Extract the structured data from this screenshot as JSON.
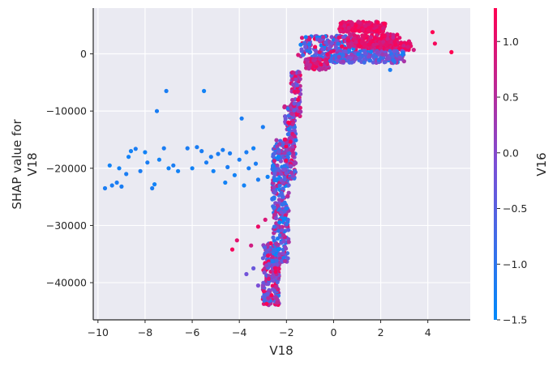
{
  "chart_data": {
    "type": "scatter",
    "title": "",
    "xlabel": "V18",
    "ylabel_lines": [
      "SHAP value for",
      "V18"
    ],
    "colorbar_label": "V16",
    "xlim": [
      -10.2,
      5.8
    ],
    "ylim": [
      -46500,
      8000
    ],
    "xticks": [
      -10,
      -8,
      -6,
      -4,
      -2,
      0,
      2,
      4
    ],
    "yticks": [
      0,
      -10000,
      -20000,
      -30000,
      -40000
    ],
    "color_range": [
      -1.5,
      1.3
    ],
    "colorbar_ticks": [
      1.0,
      0.5,
      0.0,
      -0.5,
      -1.0,
      -1.5
    ],
    "colormap": [
      "#008afb",
      "#7b4fd6",
      "#ff0052"
    ],
    "background": "#eaeaf2",
    "grid": true,
    "points": [
      [
        -9.7,
        -23500,
        -1.2
      ],
      [
        -9.5,
        -19500,
        -1.3
      ],
      [
        -9.4,
        -23000,
        -1.2
      ],
      [
        -9.2,
        -22500,
        -1.2
      ],
      [
        -9.1,
        -20000,
        -1.3
      ],
      [
        -9.0,
        -23200,
        -1.2
      ],
      [
        -8.8,
        -21000,
        -1.2
      ],
      [
        -8.7,
        -18000,
        -1.3
      ],
      [
        -8.6,
        -17000,
        -1.3
      ],
      [
        -8.4,
        -16600,
        -1.2
      ],
      [
        -8.2,
        -20500,
        -1.2
      ],
      [
        -8.0,
        -17200,
        -1.3
      ],
      [
        -7.9,
        -19000,
        -1.2
      ],
      [
        -7.7,
        -23500,
        -1.2
      ],
      [
        -7.6,
        -22800,
        -1.3
      ],
      [
        -7.5,
        -10000,
        -1.2
      ],
      [
        -7.4,
        -18500,
        -1.3
      ],
      [
        -7.2,
        -16500,
        -1.2
      ],
      [
        -7.1,
        -6500,
        -1.2
      ],
      [
        -7.0,
        -20000,
        -1.3
      ],
      [
        -6.8,
        -19500,
        -1.2
      ],
      [
        -6.6,
        -20500,
        -1.3
      ],
      [
        -6.2,
        -16500,
        -1.2
      ],
      [
        -6.0,
        -20000,
        -1.3
      ],
      [
        -5.8,
        -16300,
        -1.2
      ],
      [
        -5.6,
        -17000,
        -1.2
      ],
      [
        -5.5,
        -6500,
        -1.3
      ],
      [
        -5.4,
        -19000,
        -1.2
      ],
      [
        -5.2,
        -18000,
        -1.2
      ],
      [
        -5.1,
        -20500,
        -1.3
      ],
      [
        -4.9,
        -17500,
        -1.2
      ],
      [
        -4.7,
        -16800,
        -1.2
      ],
      [
        -4.6,
        -22500,
        -1.3
      ],
      [
        -4.5,
        -19800,
        -1.2
      ],
      [
        -4.4,
        -17400,
        -1.2
      ],
      [
        -4.2,
        -21200,
        -1.3
      ],
      [
        -4.0,
        -18500,
        -1.2
      ],
      [
        -3.9,
        -11300,
        -1.2
      ],
      [
        -3.8,
        -23000,
        -1.3
      ],
      [
        -3.7,
        -17200,
        -1.2
      ],
      [
        -3.6,
        -20000,
        -1.2
      ],
      [
        -3.4,
        -16500,
        -1.3
      ],
      [
        -3.3,
        -19200,
        -1.2
      ],
      [
        -3.2,
        -22000,
        -1.2
      ],
      [
        -3.0,
        -12800,
        -1.2
      ],
      [
        -2.8,
        -21500,
        -1.3
      ],
      [
        -4.3,
        -34200,
        1.2
      ],
      [
        -4.1,
        -32600,
        1.0
      ],
      [
        -3.2,
        -30200,
        1.1
      ],
      [
        -2.9,
        -29000,
        0.9
      ],
      [
        -3.5,
        -33500,
        0.8
      ],
      [
        -3.4,
        -37500,
        -0.3
      ],
      [
        -3.7,
        -38500,
        -0.2
      ],
      [
        -3.2,
        -40500,
        -0.1
      ],
      [
        -2.8,
        -42000,
        -0.4
      ],
      [
        -2.6,
        -35500,
        0.7
      ],
      [
        -2.4,
        -43500,
        0.6
      ],
      [
        -1.6,
        -4500,
        0.2
      ],
      [
        -1.5,
        -200,
        0.9
      ],
      [
        -1.2,
        1200,
        -0.2
      ],
      [
        4.2,
        3800,
        1.3
      ],
      [
        4.3,
        1800,
        1.2
      ],
      [
        5.0,
        300,
        1.3
      ],
      [
        3.4,
        700,
        0.8
      ],
      [
        2.8,
        2800,
        1.0
      ],
      [
        2.4,
        -2800,
        -1.2
      ]
    ],
    "clusters": [
      {
        "x": [
          -3.0,
          -2.3
        ],
        "y": [
          -44000,
          -33000
        ],
        "v": [
          -1.1,
          1.3
        ],
        "n": 230
      },
      {
        "x": [
          -2.6,
          -1.9
        ],
        "y": [
          -36500,
          -15000
        ],
        "v": [
          -1.5,
          0.9
        ],
        "n": 320
      },
      {
        "x": [
          -2.1,
          -1.6
        ],
        "y": [
          -22000,
          -9000
        ],
        "v": [
          -1.2,
          1.3
        ],
        "n": 160
      },
      {
        "x": [
          -1.8,
          -1.4
        ],
        "y": [
          -11000,
          -3000
        ],
        "v": [
          -0.6,
          1.3
        ],
        "n": 90
      },
      {
        "x": [
          -1.4,
          1.0
        ],
        "y": [
          -1500,
          3200
        ],
        "v": [
          -1.4,
          1.3
        ],
        "n": 220
      },
      {
        "x": [
          -1.2,
          -0.2
        ],
        "y": [
          -2800,
          -800
        ],
        "v": [
          0.2,
          1.3
        ],
        "n": 90
      },
      {
        "x": [
          0.2,
          2.2
        ],
        "y": [
          3800,
          5600
        ],
        "v": [
          0.8,
          1.3
        ],
        "n": 160
      },
      {
        "x": [
          0.6,
          2.7
        ],
        "y": [
          1200,
          3500
        ],
        "v": [
          0.6,
          1.3
        ],
        "n": 140
      },
      {
        "x": [
          1.2,
          3.3
        ],
        "y": [
          700,
          2200
        ],
        "v": [
          0.7,
          1.3
        ],
        "n": 160
      },
      {
        "x": [
          0.0,
          3.0
        ],
        "y": [
          -1600,
          600
        ],
        "v": [
          -1.3,
          0.4
        ],
        "n": 190
      }
    ]
  }
}
